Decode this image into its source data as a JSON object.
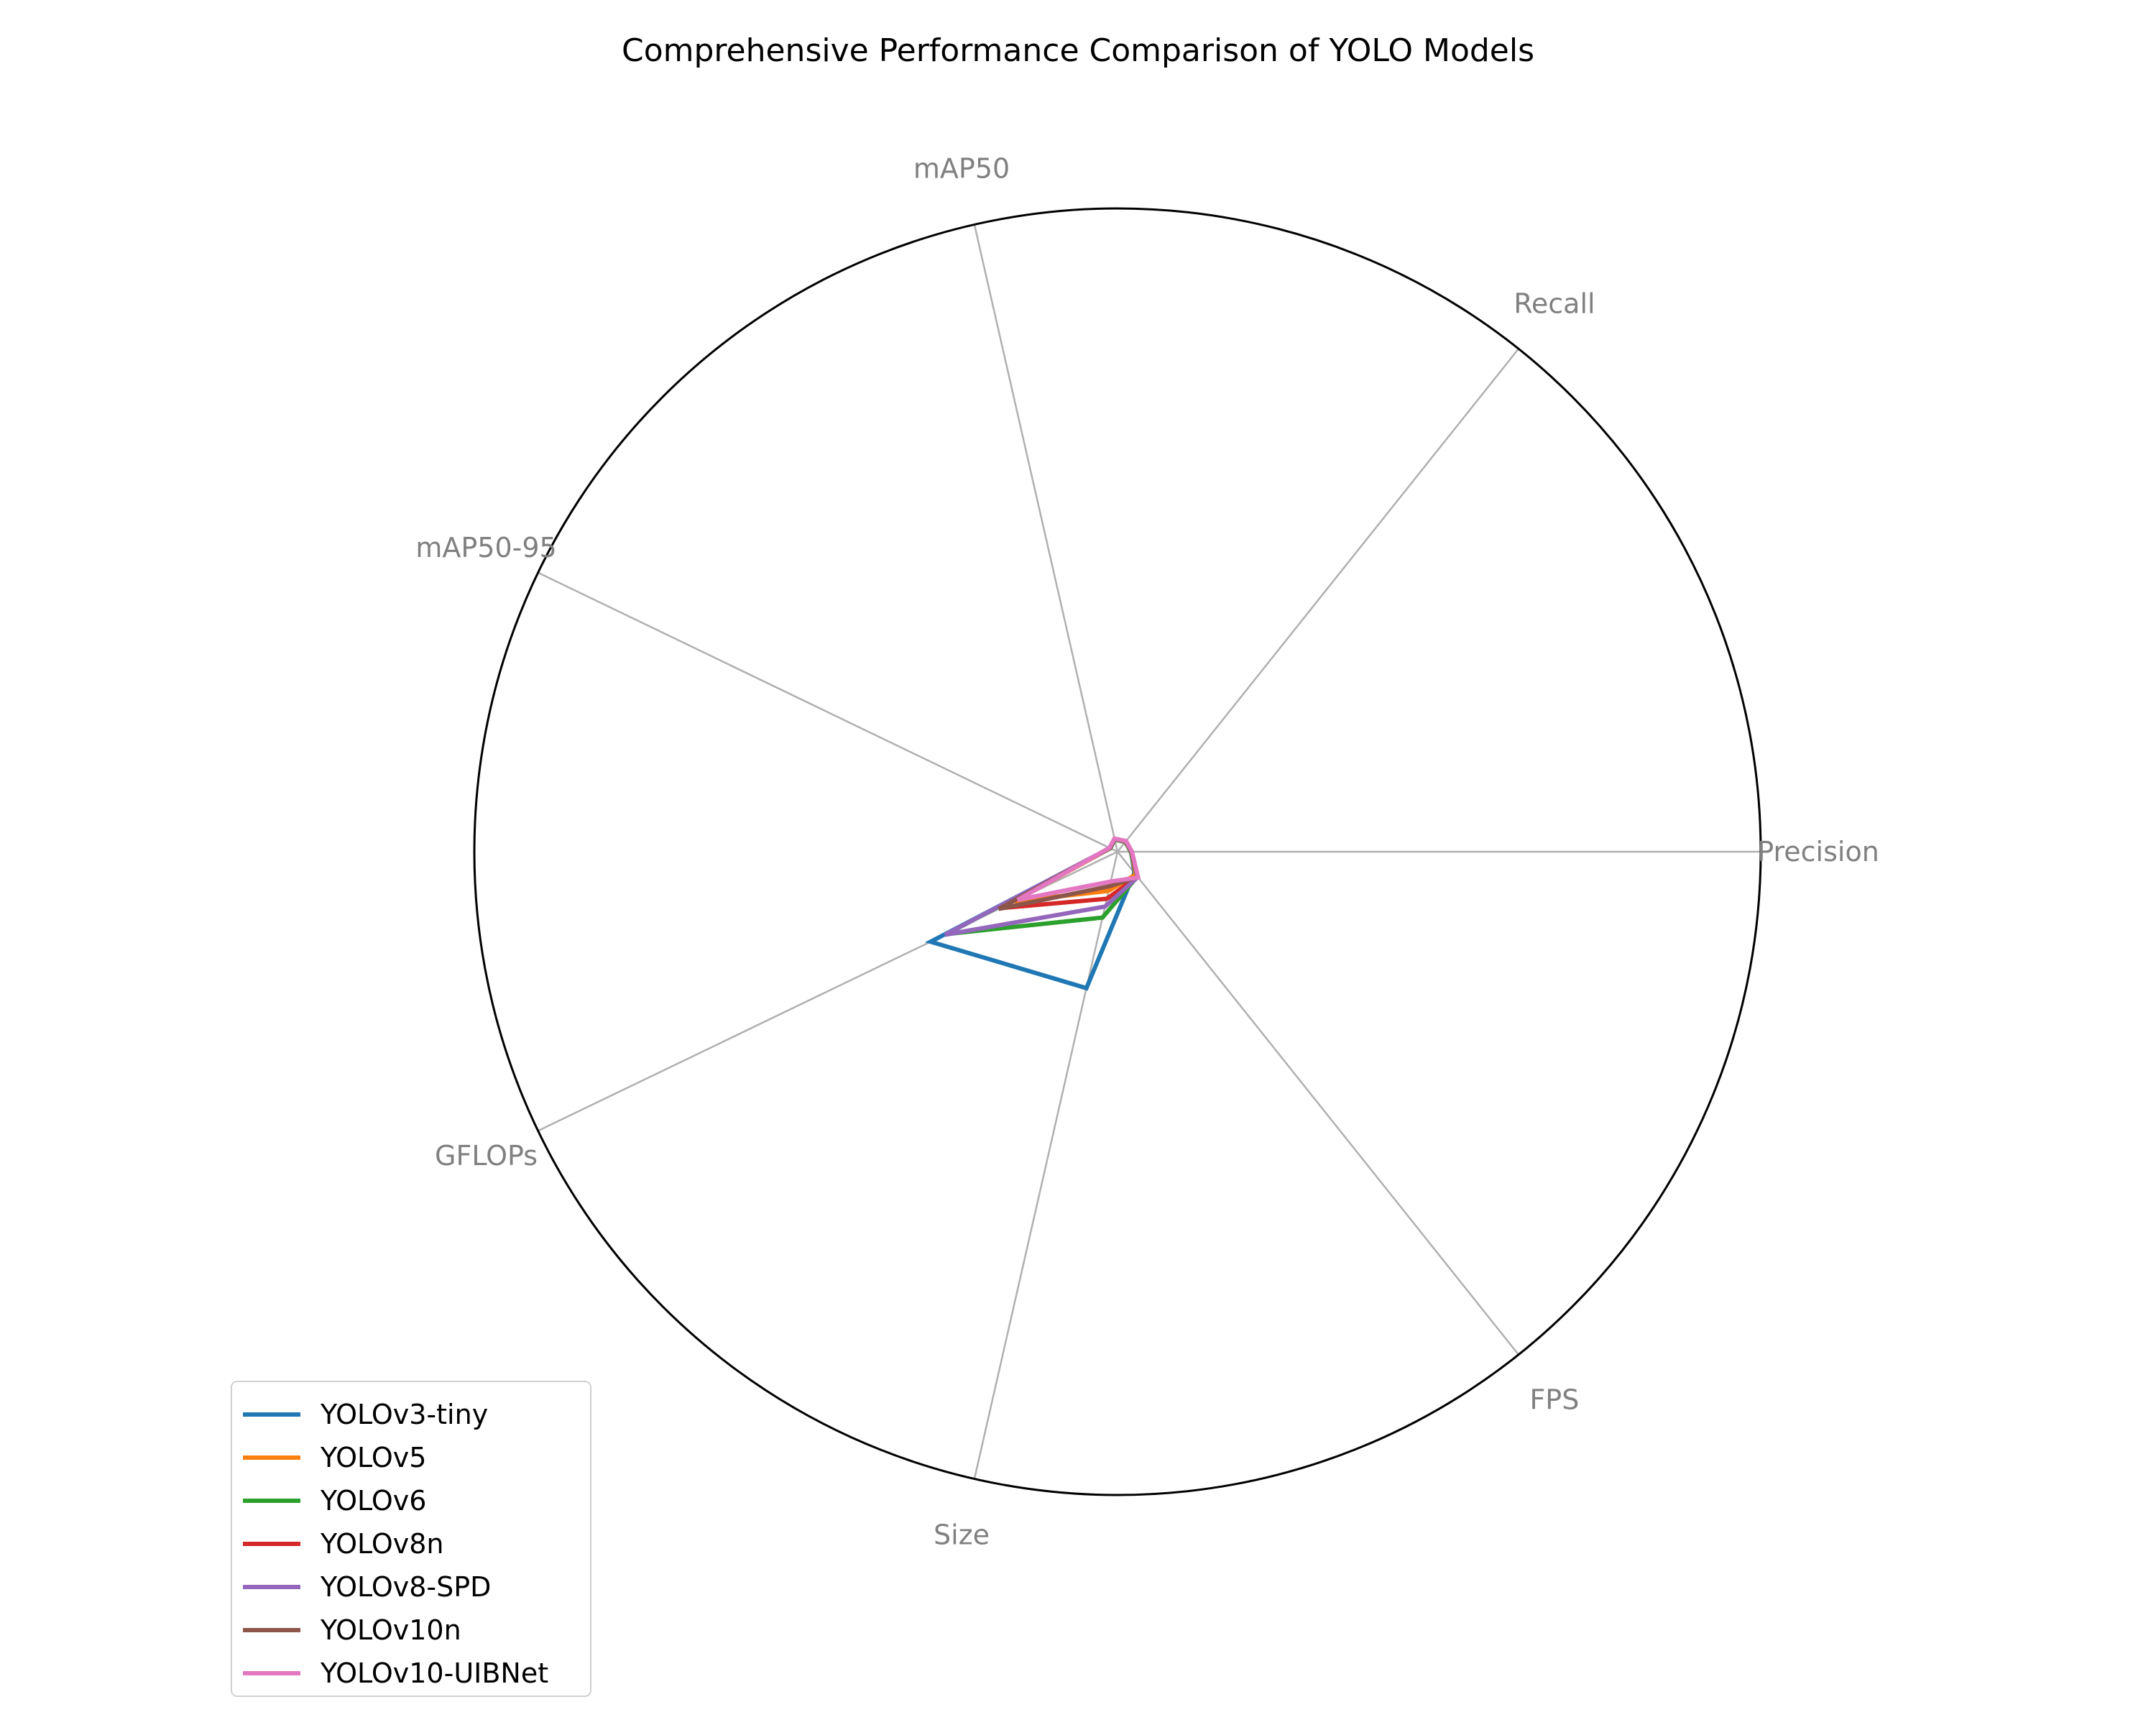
{
  "chart_data": {
    "type": "radar",
    "title": "Comprehensive Performance Comparison of YOLO Models",
    "axes": [
      "Precision",
      "Recall",
      "mAP50",
      "mAP50-95",
      "GFLOPs",
      "Size",
      "FPS"
    ],
    "grid": true,
    "radial_tick_labels": false,
    "legend_position": "lower-left",
    "series": [
      {
        "name": "YOLOv3-tiny",
        "color": "#1f77b4",
        "values": [
          0.85,
          0.8,
          0.78,
          0.5,
          12.9,
          8.7,
          1.68
        ]
      },
      {
        "name": "YOLOv5",
        "color": "#ff7f0e",
        "values": [
          0.84,
          0.8,
          0.79,
          0.51,
          7.1,
          2.5,
          1.81
        ]
      },
      {
        "name": "YOLOv6",
        "color": "#2ca02c",
        "values": [
          0.82,
          0.78,
          0.77,
          0.49,
          11.8,
          4.2,
          1.98
        ]
      },
      {
        "name": "YOLOv8n",
        "color": "#d62728",
        "values": [
          0.86,
          0.81,
          0.8,
          0.52,
          8.1,
          3.0,
          2.0
        ]
      },
      {
        "name": "YOLOv8-SPD",
        "color": "#9467bd",
        "values": [
          0.87,
          0.82,
          0.81,
          0.53,
          11.9,
          3.5,
          2.02
        ]
      },
      {
        "name": "YOLOv10n",
        "color": "#8c564b",
        "values": [
          0.88,
          0.83,
          0.82,
          0.54,
          8.2,
          2.2,
          2.02
        ]
      },
      {
        "name": "YOLOv10-UIBNet",
        "color": "#e377c2",
        "values": [
          0.9,
          0.85,
          0.84,
          0.56,
          6.9,
          1.9,
          2.05
        ]
      }
    ]
  }
}
